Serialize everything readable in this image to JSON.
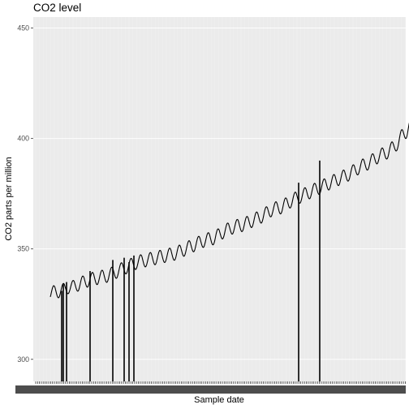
{
  "chart_data": {
    "type": "line",
    "title": "CO2 level",
    "xlabel": "Sample date",
    "ylabel": "CO2 parts per million",
    "ylim": [
      290,
      455
    ],
    "y_ticks": [
      300,
      350,
      400,
      450
    ],
    "y_tick_labels": [
      "300",
      "350",
      "400",
      "450"
    ],
    "x_tick_labels": "illegible — rendered as an overlapping band of categorical sample-date labels",
    "x_is_categorical": true,
    "grid": true,
    "legend": "none",
    "series": [
      {
        "x": [
          1980,
          1981,
          1982,
          1983,
          1984,
          1985,
          1986,
          1987,
          1988,
          1989,
          1990,
          1991,
          1992,
          1993,
          1994,
          1995,
          1996,
          1997,
          1998,
          1999,
          2000,
          2001,
          2002,
          2003,
          2004,
          2005,
          2006,
          2007,
          2008,
          2009,
          2010,
          2011,
          2012,
          2013,
          2014,
          2015,
          2016,
          2017
        ],
        "seasonal_peak": [
          333,
          334,
          335,
          337,
          339,
          340,
          341,
          343,
          345,
          347,
          348,
          349,
          350,
          351,
          353,
          355,
          357,
          358,
          361,
          363,
          364,
          366,
          368,
          371,
          372,
          375,
          377,
          379,
          381,
          383,
          385,
          387,
          390,
          392,
          395,
          397,
          401,
          409
        ],
        "seasonal_trough": [
          327,
          328,
          330,
          331,
          333,
          334,
          335,
          337,
          339,
          341,
          342,
          343,
          344,
          345,
          347,
          349,
          351,
          352,
          355,
          357,
          358,
          360,
          362,
          365,
          366,
          369,
          371,
          373,
          375,
          377,
          379,
          381,
          384,
          386,
          389,
          391,
          395,
          401
        ],
        "approx_series_end_value": 407
      }
    ],
    "drop_lines": {
      "bottom_value": 290,
      "tops": [
        331,
        334,
        335,
        340,
        345,
        346,
        344,
        347,
        380,
        390
      ]
    }
  }
}
